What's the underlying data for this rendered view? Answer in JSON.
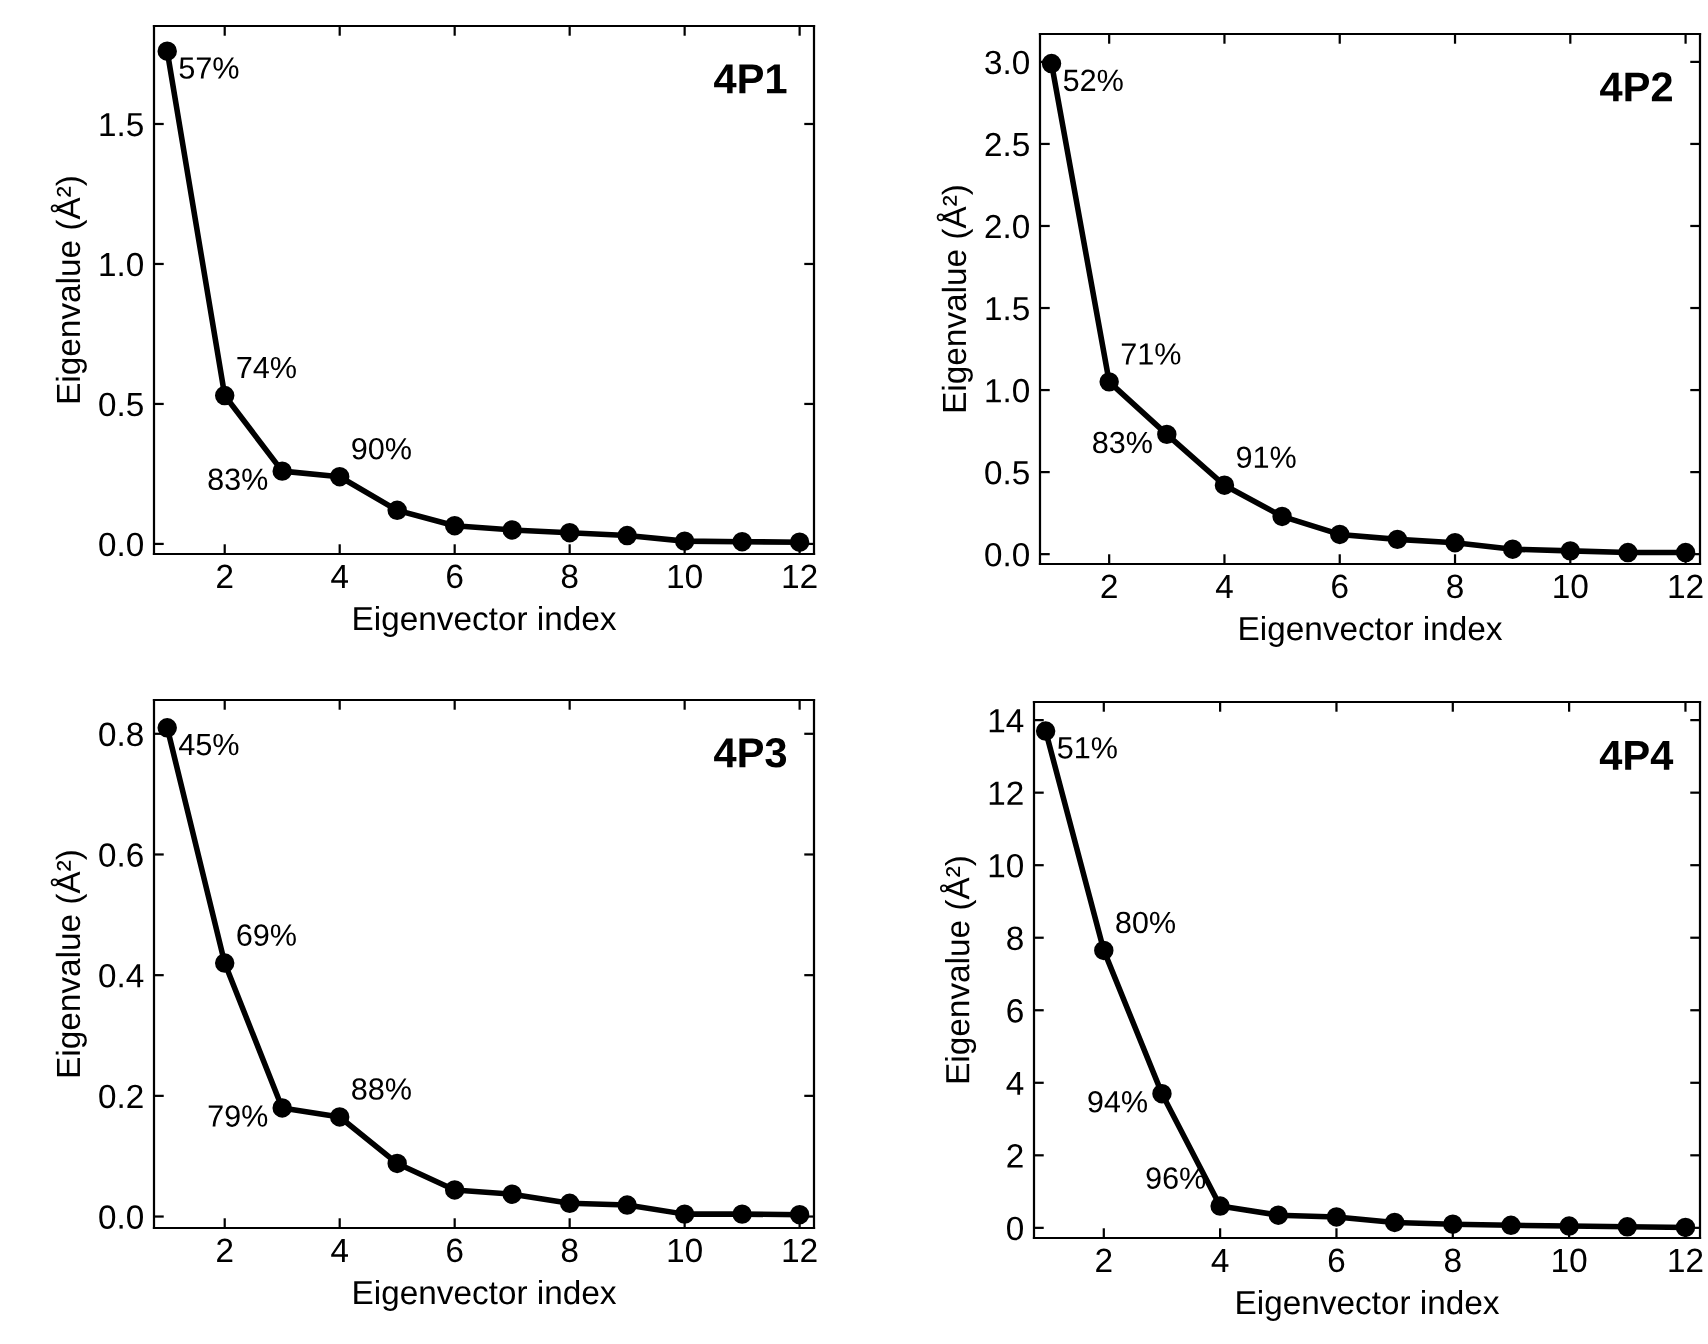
{
  "chart_data": [
    {
      "type": "line",
      "title": "4P1",
      "xlabel": "Eigenvector index",
      "ylabel": "Eigenvalue (Å²)",
      "marker": "circle",
      "line_style": "solid",
      "grid": false,
      "legend": false,
      "x": [
        1,
        2,
        3,
        4,
        5,
        6,
        7,
        8,
        9,
        10,
        11,
        12
      ],
      "series": [
        {
          "color": "#000000",
          "values": [
            1.76,
            0.53,
            0.26,
            0.24,
            0.12,
            0.065,
            0.05,
            0.04,
            0.03,
            0.01,
            0.008,
            0.006
          ]
        }
      ],
      "xlim": [
        0.77,
        12.25
      ],
      "xticks": [
        2,
        4,
        6,
        8,
        10,
        12
      ],
      "ylim": [
        -0.036,
        1.85
      ],
      "yticks": [
        {
          "value": 0,
          "label": "0.0"
        },
        0.5,
        {
          "value": 1,
          "label": "1.0"
        },
        1.5
      ],
      "annotations": [
        {
          "text": "57%",
          "x": 1,
          "y": 1.76
        },
        {
          "text": "74%",
          "x": 2,
          "y": 0.53
        },
        {
          "text": "83%",
          "x": 3,
          "y": 0.26
        },
        {
          "text": "90%",
          "x": 4,
          "y": 0.24
        }
      ]
    },
    {
      "type": "line",
      "title": "4P2",
      "xlabel": "Eigenvector index",
      "ylabel": "Eigenvalue (Å²)",
      "marker": "circle",
      "line_style": "solid",
      "grid": false,
      "legend": false,
      "x": [
        1,
        2,
        3,
        4,
        5,
        6,
        7,
        8,
        9,
        10,
        11,
        12
      ],
      "series": [
        {
          "color": "#000000",
          "values": [
            2.99,
            1.05,
            0.73,
            0.42,
            0.23,
            0.12,
            0.09,
            0.07,
            0.03,
            0.02,
            0.01,
            0.01
          ]
        }
      ],
      "xlim": [
        0.8,
        12.25
      ],
      "xticks": [
        2,
        4,
        6,
        8,
        10,
        12
      ],
      "ylim": [
        -0.06,
        3.17
      ],
      "yticks": [
        {
          "value": 0,
          "label": "0.0"
        },
        0.5,
        {
          "value": 1,
          "label": "1.0"
        },
        1.5,
        {
          "value": 2,
          "label": "2.0"
        },
        2.5,
        {
          "value": 3,
          "label": "3.0"
        }
      ],
      "annotations": [
        {
          "text": "52%",
          "x": 1,
          "y": 2.99
        },
        {
          "text": "71%",
          "x": 2,
          "y": 1.05
        },
        {
          "text": "83%",
          "x": 3,
          "y": 0.73
        },
        {
          "text": "91%",
          "x": 4,
          "y": 0.42
        }
      ]
    },
    {
      "type": "line",
      "title": "4P3",
      "xlabel": "Eigenvector index",
      "ylabel": "Eigenvalue (Å²)",
      "marker": "circle",
      "line_style": "solid",
      "grid": false,
      "legend": false,
      "x": [
        1,
        2,
        3,
        4,
        5,
        6,
        7,
        8,
        9,
        10,
        11,
        12
      ],
      "series": [
        {
          "color": "#000000",
          "values": [
            0.81,
            0.42,
            0.18,
            0.165,
            0.088,
            0.044,
            0.037,
            0.022,
            0.019,
            0.004,
            0.004,
            0.003
          ]
        }
      ],
      "xlim": [
        0.77,
        12.25
      ],
      "xticks": [
        2,
        4,
        6,
        8,
        10,
        12
      ],
      "ylim": [
        -0.019,
        0.856
      ],
      "yticks": [
        {
          "value": 0,
          "label": "0.0"
        },
        0.2,
        0.4,
        0.6,
        0.8
      ],
      "annotations": [
        {
          "text": "45%",
          "x": 1,
          "y": 0.81
        },
        {
          "text": "69%",
          "x": 2,
          "y": 0.42
        },
        {
          "text": "79%",
          "x": 3,
          "y": 0.18
        },
        {
          "text": "88%",
          "x": 4,
          "y": 0.165
        }
      ]
    },
    {
      "type": "line",
      "title": "4P4",
      "xlabel": "Eigenvector index",
      "ylabel": "Eigenvalue (Å²)",
      "marker": "circle",
      "line_style": "solid",
      "grid": false,
      "legend": false,
      "x": [
        1,
        2,
        3,
        4,
        5,
        6,
        7,
        8,
        9,
        10,
        11,
        12
      ],
      "series": [
        {
          "color": "#000000",
          "values": [
            13.7,
            7.65,
            3.7,
            0.6,
            0.35,
            0.3,
            0.15,
            0.1,
            0.07,
            0.05,
            0.03,
            0.01
          ]
        }
      ],
      "xlim": [
        0.8,
        12.25
      ],
      "xticks": [
        2,
        4,
        6,
        8,
        10,
        12
      ],
      "ylim": [
        -0.28,
        14.5
      ],
      "yticks": [
        0,
        2,
        4,
        6,
        8,
        10,
        12,
        14
      ],
      "annotations": [
        {
          "text": "51%",
          "x": 1,
          "y": 13.7
        },
        {
          "text": "80%",
          "x": 2,
          "y": 7.65
        },
        {
          "text": "94%",
          "x": 3,
          "y": 3.7
        },
        {
          "text": "96%",
          "x": 4,
          "y": 0.6
        }
      ]
    }
  ]
}
